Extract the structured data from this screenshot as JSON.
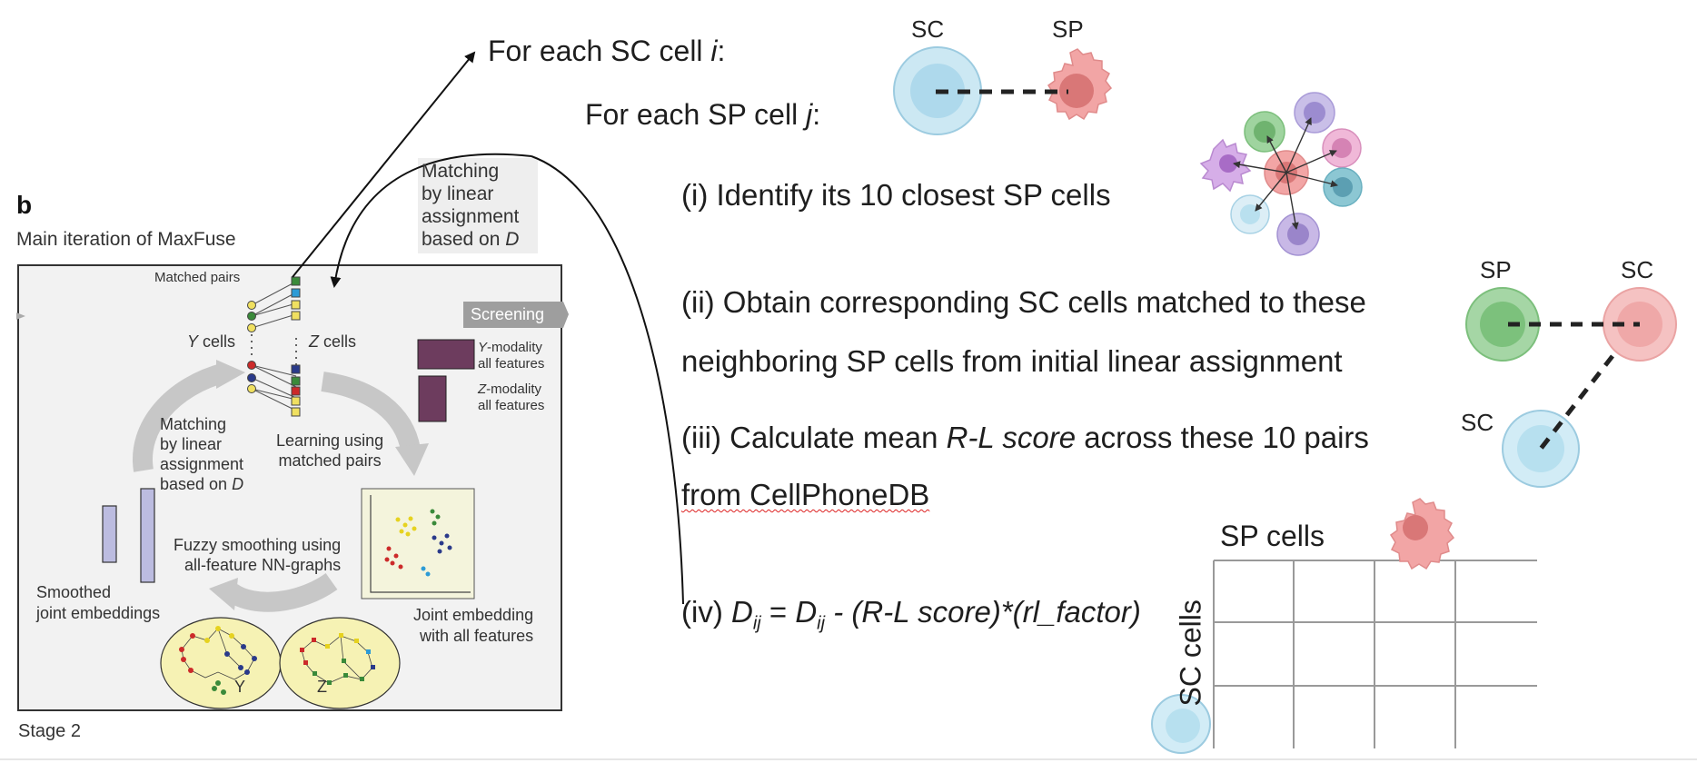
{
  "header": {
    "for_each_sc_prefix": "For each SC cell ",
    "for_each_sc_var": "i",
    "for_each_sp_prefix": "For each SP cell ",
    "for_each_sp_var": "j",
    "colon": ":"
  },
  "steps": {
    "s1": "(i) Identify its 10 closest SP cells",
    "s2_line1": "(ii) Obtain corresponding SC cells matched to these",
    "s2_line2": "neighboring SP cells from initial linear assignment",
    "s3_prefix": "(iii) Calculate mean ",
    "s3_italic": "R-L score",
    "s3_suffix": " across these 10 pairs",
    "s3_line2_link": "from CellPhoneDB",
    "s4_prefix": "(iv) ",
    "s4_D": "D",
    "s4_sub": "ij",
    "s4_eq": " = ",
    "s4_minus": " - (R-L score)*(rl_factor)"
  },
  "cell_labels": {
    "top_sc": "SC",
    "top_sp": "SP",
    "mid_sp": "SP",
    "mid_sc": "SC",
    "low_sc": "SC"
  },
  "grid": {
    "col_label": "SP cells",
    "row_label": "SC cells"
  },
  "figure_b": {
    "panel_letter": "b",
    "title": "Main iteration of MaxFuse",
    "matched_pairs": "Matched pairs",
    "y_cells_var": "Y",
    "y_cells_suffix": " cells",
    "z_cells_var": "Z",
    "z_cells_suffix": " cells",
    "screening": "Screening",
    "y_modality_var": "Y",
    "y_modality_suffix": "-modality",
    "z_modality_var": "Z",
    "z_modality_suffix": "-modality",
    "all_features": "all features",
    "matching_line1": "Matching",
    "matching_line2": "by linear",
    "matching_line3": "assignment",
    "matching_line4_prefix": "based on ",
    "matching_line4_var": "D",
    "learning_line1": "Learning using",
    "learning_line2": "matched pairs",
    "fuzzy_line1": "Fuzzy smoothing using",
    "fuzzy_line2": "all-feature NN-graphs",
    "smoothed_line1": "Smoothed",
    "smoothed_line2": "joint embeddings",
    "joint_line1": "Joint embedding",
    "joint_line2": "with all features",
    "ellipse_y": "Y",
    "ellipse_z": "Z",
    "stage": "Stage 2"
  },
  "callout": {
    "line1": "Matching",
    "line2": "by linear",
    "line3": "assignment",
    "line4_prefix": "based on ",
    "line4_var": "D"
  },
  "colors": {
    "sc_blue": "#bfe1ef",
    "sp_pink": "#f2a5a5",
    "green_cell": "#8fcf92",
    "purple_block": "#6d3c5e",
    "panel_bg": "#f2f2f2",
    "yellow_ellipse": "#f6f2b4"
  }
}
